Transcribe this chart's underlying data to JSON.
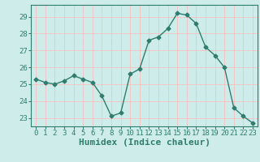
{
  "xlabel": "Humidex (Indice chaleur)",
  "x": [
    0,
    1,
    2,
    3,
    4,
    5,
    6,
    7,
    8,
    9,
    10,
    11,
    12,
    13,
    14,
    15,
    16,
    17,
    18,
    19,
    20,
    21,
    22,
    23
  ],
  "y": [
    25.3,
    25.1,
    25.0,
    25.2,
    25.5,
    25.3,
    25.1,
    24.3,
    23.1,
    23.3,
    25.6,
    25.9,
    27.6,
    27.8,
    28.3,
    29.2,
    29.1,
    28.6,
    27.2,
    26.7,
    26.0,
    23.6,
    23.1,
    22.7
  ],
  "line_color": "#2e7d6e",
  "marker": "D",
  "marker_size": 2.5,
  "bg_color": "#ceecea",
  "grid_color": "#f5c0c0",
  "ylim": [
    22.5,
    29.7
  ],
  "yticks": [
    23,
    24,
    25,
    26,
    27,
    28,
    29
  ],
  "xticks": [
    0,
    1,
    2,
    3,
    4,
    5,
    6,
    7,
    8,
    9,
    10,
    11,
    12,
    13,
    14,
    15,
    16,
    17,
    18,
    19,
    20,
    21,
    22,
    23
  ],
  "tick_fontsize": 6.5,
  "xlabel_fontsize": 8,
  "axis_color": "#2e7d6e",
  "label_color": "#2e7d6e"
}
